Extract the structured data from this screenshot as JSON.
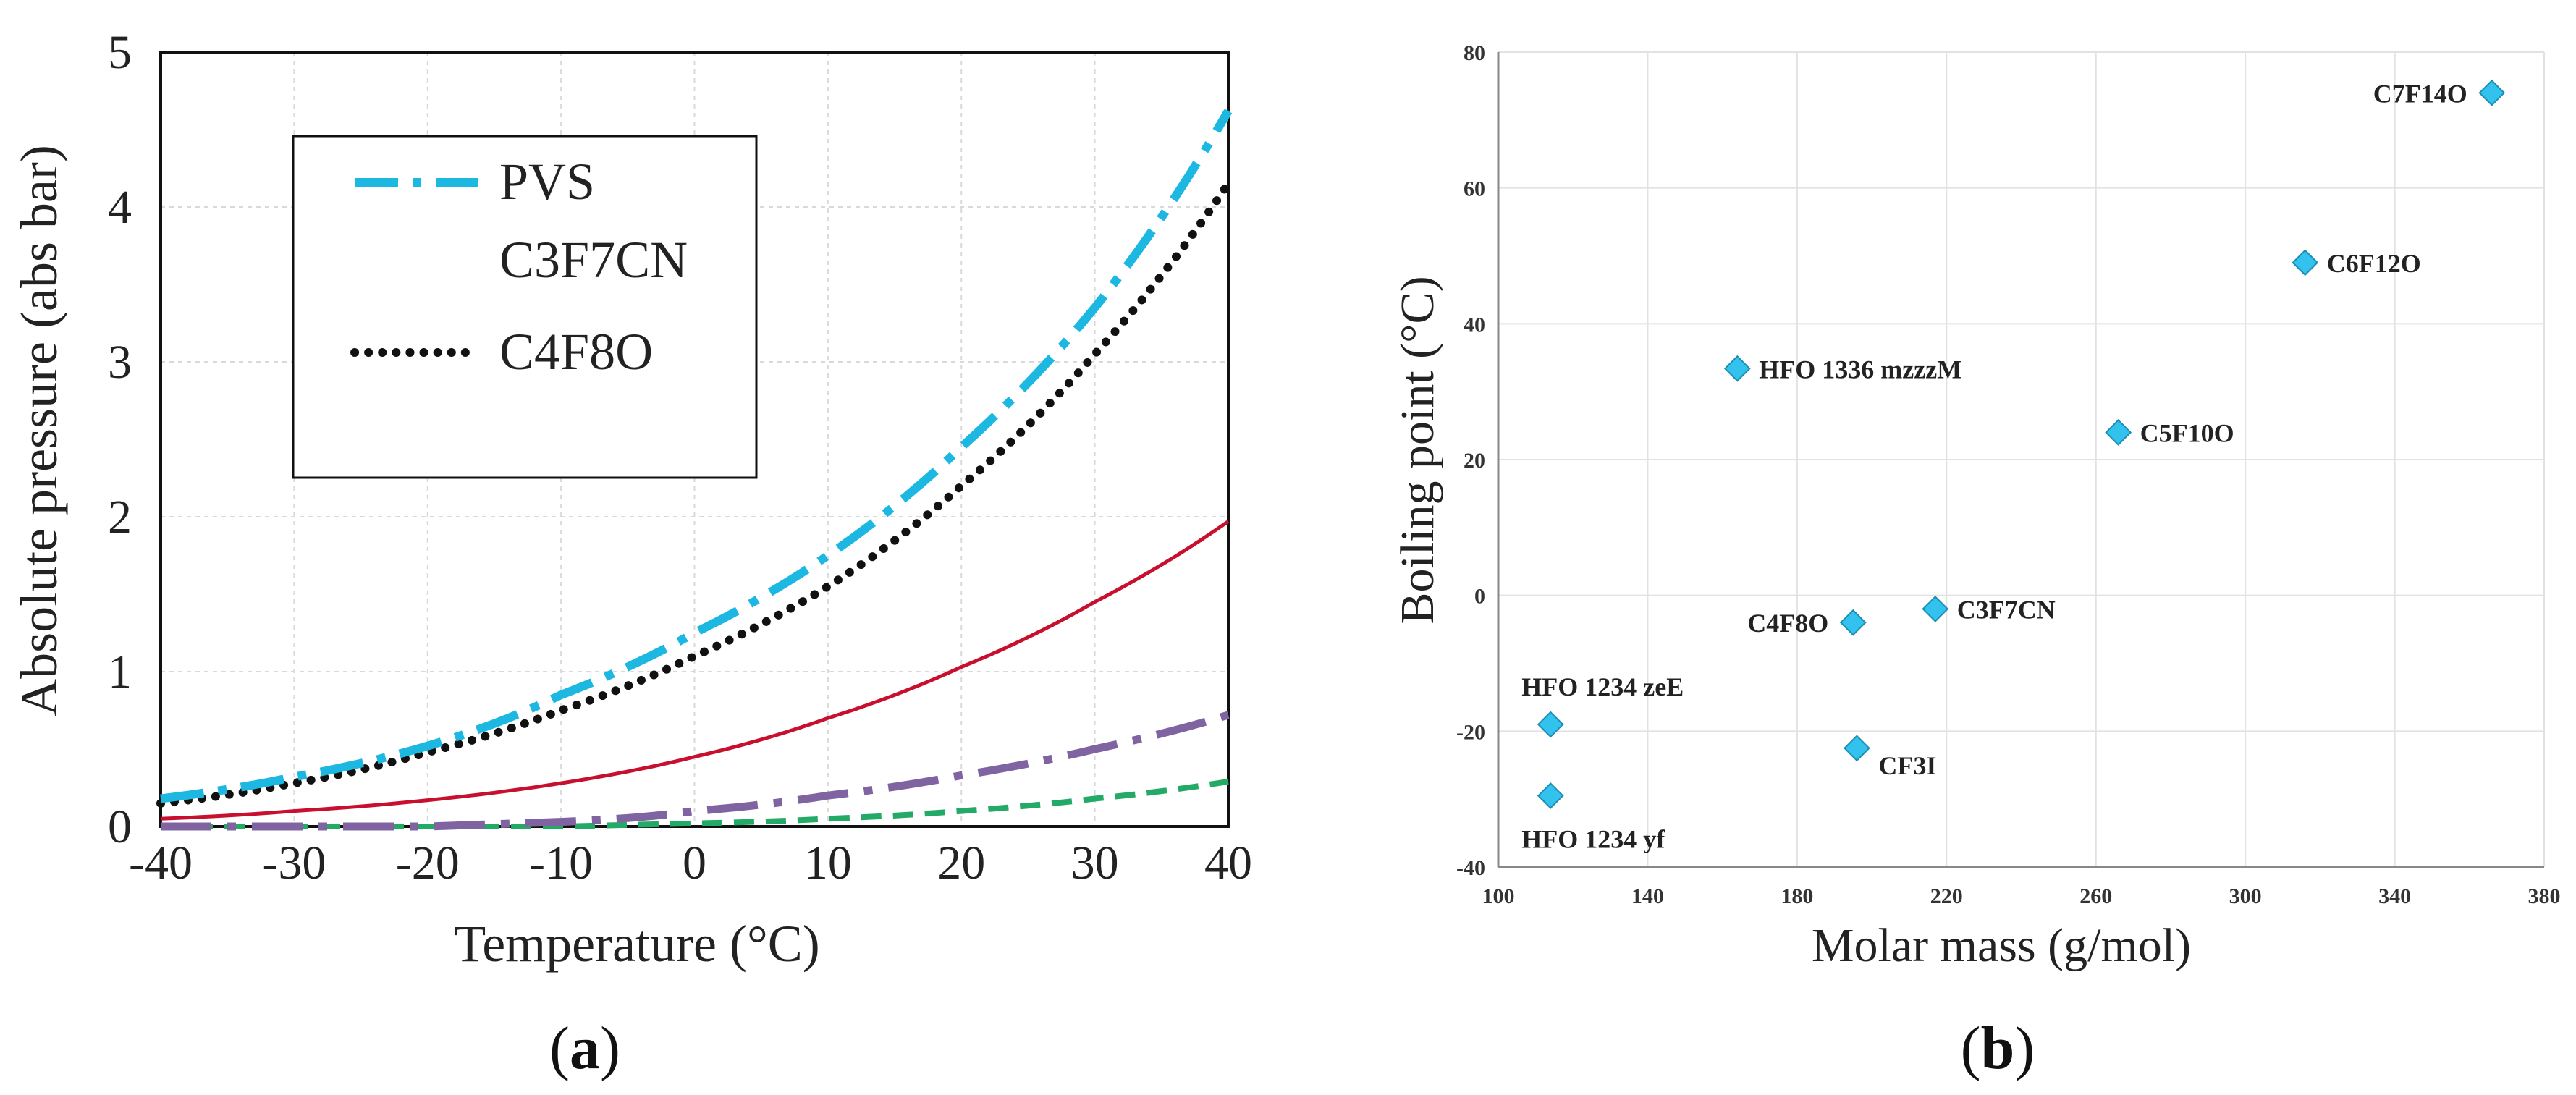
{
  "chart_data": [
    {
      "panel_label": "(a)",
      "type": "line",
      "title": "",
      "xlabel": "Temperature (°C)",
      "ylabel": "Absolute  pressure (abs bar)",
      "xlim": [
        -40,
        40
      ],
      "ylim": [
        0,
        5
      ],
      "xticks": [
        -40,
        -30,
        -20,
        -10,
        0,
        10,
        20,
        30,
        40
      ],
      "yticks": [
        0,
        1,
        2,
        3,
        4,
        5
      ],
      "grid": true,
      "legend": {
        "placement": "top-left",
        "entries": [
          {
            "label": "PVS",
            "series": "PVS C3F7CN"
          },
          {
            "label": "C3F7CN",
            "series": null
          },
          {
            "label": "C4F8O",
            "series": "C4F8O"
          }
        ]
      },
      "series": [
        {
          "name": "PVS C3F7CN",
          "color": "#1cb8e2",
          "dash": "dashdot",
          "x": [
            -40,
            -30,
            -20,
            -10,
            0,
            10,
            20,
            30,
            40
          ],
          "values": [
            0.18,
            0.32,
            0.52,
            0.85,
            1.25,
            1.75,
            2.45,
            3.35,
            4.62
          ]
        },
        {
          "name": "C4F8O",
          "color": "#111111",
          "dash": "dotted",
          "x": [
            -40,
            -30,
            -20,
            -10,
            0,
            10,
            20,
            30,
            40
          ],
          "values": [
            0.15,
            0.28,
            0.48,
            0.75,
            1.1,
            1.55,
            2.2,
            3.05,
            4.15
          ]
        },
        {
          "name": "red curve",
          "color": "#c8102e",
          "dash": "solid",
          "x": [
            -40,
            -30,
            -20,
            -10,
            0,
            10,
            20,
            30,
            40
          ],
          "values": [
            0.05,
            0.1,
            0.17,
            0.28,
            0.45,
            0.7,
            1.03,
            1.45,
            1.97
          ]
        },
        {
          "name": "purple curve",
          "color": "#8064a2",
          "dash": "longdashdot",
          "x": [
            -40,
            -30,
            -20,
            -10,
            0,
            10,
            20,
            30,
            40
          ],
          "values": [
            0.0,
            0.0,
            0.0,
            0.03,
            0.1,
            0.2,
            0.33,
            0.5,
            0.72
          ]
        },
        {
          "name": "green curve",
          "color": "#22aa66",
          "dash": "dashed",
          "x": [
            -40,
            -30,
            -20,
            -10,
            0,
            10,
            20,
            30,
            40
          ],
          "values": [
            0.0,
            0.0,
            0.0,
            0.0,
            0.02,
            0.05,
            0.1,
            0.18,
            0.29
          ]
        }
      ]
    },
    {
      "panel_label": "(b)",
      "type": "scatter",
      "title": "",
      "xlabel": "Molar mass (g/mol)",
      "ylabel": "Boiling  point  (°C)",
      "xlim": [
        100,
        380
      ],
      "ylim": [
        -40,
        80
      ],
      "xticks": [
        100,
        140,
        180,
        220,
        260,
        300,
        340,
        380
      ],
      "yticks": [
        -40,
        -20,
        0,
        20,
        40,
        60,
        80
      ],
      "grid": true,
      "marker": "diamond",
      "color": "#33c1ee",
      "points": [
        {
          "label": "C7F14O",
          "x": 366,
          "y": 74,
          "label_pos": "left"
        },
        {
          "label": "C6F12O",
          "x": 316,
          "y": 49,
          "label_pos": "right"
        },
        {
          "label": "HFO 1336 mzzzM",
          "x": 164,
          "y": 33.4,
          "label_pos": "right"
        },
        {
          "label": "C5F10O",
          "x": 266,
          "y": 24,
          "label_pos": "right"
        },
        {
          "label": "C3F7CN",
          "x": 217,
          "y": -2,
          "label_pos": "right"
        },
        {
          "label": "C4F8O",
          "x": 195,
          "y": -4,
          "label_pos": "left"
        },
        {
          "label": "HFO 1234 zeE",
          "x": 114,
          "y": -19,
          "label_pos": "above"
        },
        {
          "label": "CF3I",
          "x": 196,
          "y": -22.5,
          "label_pos": "right-below"
        },
        {
          "label": "HFO 1234 yf",
          "x": 114,
          "y": -29.5,
          "label_pos": "below"
        }
      ]
    }
  ]
}
